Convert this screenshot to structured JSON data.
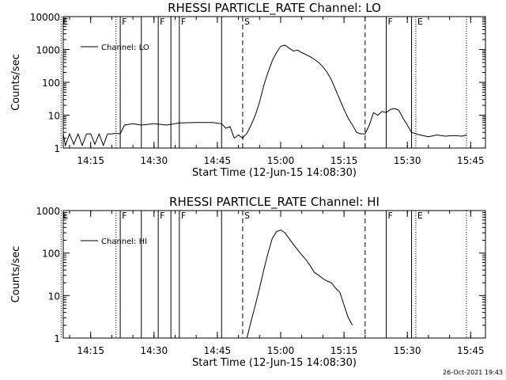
{
  "chart_data": [
    {
      "type": "line",
      "title": "RHESSI PARTICLE_RATE Channel: LO",
      "xlabel": "Start Time (12-Jun-15 14:08:30)",
      "ylabel": "Counts/sec",
      "yscale": "log",
      "ylim": [
        1,
        10000
      ],
      "y_ticks": [
        "1",
        "10",
        "100",
        "1000",
        "10000"
      ],
      "xlim_minutes": [
        14.133,
        15.808
      ],
      "x_ticks": [
        "14:15",
        "14:30",
        "14:45",
        "15:00",
        "15:15",
        "15:30",
        "15:45"
      ],
      "legend": {
        "position": "top-left",
        "label": "Channel: LO"
      },
      "flags": [
        {
          "label": "E",
          "t": "14:08",
          "style": "dotted"
        },
        {
          "label": "",
          "t": "14:21",
          "style": "dotted"
        },
        {
          "label": "F",
          "t": "14:22",
          "style": "solid"
        },
        {
          "label": "",
          "t": "14:27",
          "style": "solid"
        },
        {
          "label": "F",
          "t": "14:31",
          "style": "solid"
        },
        {
          "label": "",
          "t": "14:34",
          "style": "solid"
        },
        {
          "label": "F",
          "t": "14:36",
          "style": "solid"
        },
        {
          "label": "",
          "t": "14:46",
          "style": "solid"
        },
        {
          "label": "S",
          "t": "14:51",
          "style": "dashed"
        },
        {
          "label": "",
          "t": "15:20",
          "style": "dashed"
        },
        {
          "label": "F",
          "t": "15:25",
          "style": "solid"
        },
        {
          "label": "",
          "t": "15:31",
          "style": "solid"
        },
        {
          "label": "E",
          "t": "15:32",
          "style": "dotted"
        },
        {
          "label": "",
          "t": "15:44",
          "style": "dotted"
        }
      ],
      "series": [
        {
          "values_t": [
            "14:08",
            "14:09",
            "14:10",
            "14:11",
            "14:12",
            "14:13",
            "14:14",
            "14:15",
            "14:16",
            "14:17",
            "14:18",
            "14:19",
            "14:20",
            "14:21",
            "14:22",
            "14:23",
            "14:25",
            "14:27",
            "14:30",
            "14:33",
            "14:36",
            "14:40",
            "14:44",
            "14:46",
            "14:47",
            "14:48",
            "14:49",
            "14:50",
            "14:51",
            "14:52",
            "14:53",
            "14:54",
            "14:55",
            "14:56",
            "14:57",
            "14:58",
            "14:59",
            "15:00",
            "15:01",
            "15:02",
            "15:03",
            "15:04",
            "15:05",
            "15:06",
            "15:07",
            "15:08",
            "15:09",
            "15:10",
            "15:11",
            "15:12",
            "15:13",
            "15:14",
            "15:15",
            "15:16",
            "15:17",
            "15:18",
            "15:19",
            "15:20",
            "15:21",
            "15:22",
            "15:23",
            "15:24",
            "15:25",
            "15:26",
            "15:27",
            "15:28",
            "15:29",
            "15:30",
            "15:31",
            "15:33",
            "15:35",
            "15:37",
            "15:39",
            "15:41",
            "15:43",
            "15:44"
          ],
          "values": [
            2.7,
            1.2,
            2.7,
            1.3,
            2.7,
            1.2,
            2.7,
            2.7,
            1.3,
            2.7,
            1.2,
            2.7,
            2.7,
            2.8,
            2.7,
            5,
            5.5,
            5,
            5.5,
            5,
            5.8,
            6,
            6,
            5.5,
            4,
            4.5,
            2,
            2.5,
            2,
            2.8,
            5,
            10,
            25,
            80,
            200,
            450,
            800,
            1250,
            1350,
            1100,
            900,
            950,
            800,
            700,
            600,
            500,
            400,
            300,
            200,
            120,
            60,
            30,
            15,
            8,
            5,
            3,
            2.7,
            2.7,
            5,
            12,
            10,
            13,
            12,
            15,
            16,
            14,
            8,
            5,
            3,
            2.5,
            2.2,
            2.5,
            2.3,
            2.4,
            2.3,
            2.5
          ]
        }
      ]
    },
    {
      "type": "line",
      "title": "RHESSI PARTICLE_RATE Channel: HI",
      "xlabel": "Start Time (12-Jun-15 14:08:30)",
      "ylabel": "Counts/sec",
      "yscale": "log",
      "ylim": [
        1,
        1000
      ],
      "y_ticks": [
        "1",
        "10",
        "100",
        "1000"
      ],
      "xlim_minutes": [
        14.133,
        15.808
      ],
      "x_ticks": [
        "14:15",
        "14:30",
        "14:45",
        "15:00",
        "15:15",
        "15:30",
        "15:45"
      ],
      "legend": {
        "position": "top-left",
        "label": "Channel: HI"
      },
      "flags": [
        {
          "label": "E",
          "t": "14:08",
          "style": "dotted"
        },
        {
          "label": "",
          "t": "14:21",
          "style": "dotted"
        },
        {
          "label": "F",
          "t": "14:22",
          "style": "solid"
        },
        {
          "label": "",
          "t": "14:27",
          "style": "solid"
        },
        {
          "label": "F",
          "t": "14:31",
          "style": "solid"
        },
        {
          "label": "",
          "t": "14:34",
          "style": "solid"
        },
        {
          "label": "F",
          "t": "14:36",
          "style": "solid"
        },
        {
          "label": "",
          "t": "14:46",
          "style": "solid"
        },
        {
          "label": "S",
          "t": "14:51",
          "style": "dashed"
        },
        {
          "label": "",
          "t": "15:20",
          "style": "dashed"
        },
        {
          "label": "F",
          "t": "15:25",
          "style": "solid"
        },
        {
          "label": "",
          "t": "15:31",
          "style": "solid"
        },
        {
          "label": "E",
          "t": "15:32",
          "style": "dotted"
        },
        {
          "label": "",
          "t": "15:44",
          "style": "dotted"
        }
      ],
      "series": [
        {
          "values_t": [
            "14:52",
            "14:53",
            "14:54",
            "14:55",
            "14:56",
            "14:57",
            "14:58",
            "14:59",
            "15:00",
            "15:01",
            "15:02",
            "15:03",
            "15:04",
            "15:05",
            "15:06",
            "15:07",
            "15:08",
            "15:09",
            "15:10",
            "15:11",
            "15:12",
            "15:13",
            "15:14",
            "15:15",
            "15:16",
            "15:17"
          ],
          "values": [
            1,
            2.5,
            6,
            15,
            40,
            100,
            220,
            320,
            350,
            300,
            220,
            160,
            120,
            90,
            70,
            50,
            35,
            30,
            25,
            22,
            20,
            15,
            12,
            6,
            3,
            2
          ]
        }
      ]
    }
  ],
  "footer_stamp": "26-Oct-2021 19:43"
}
